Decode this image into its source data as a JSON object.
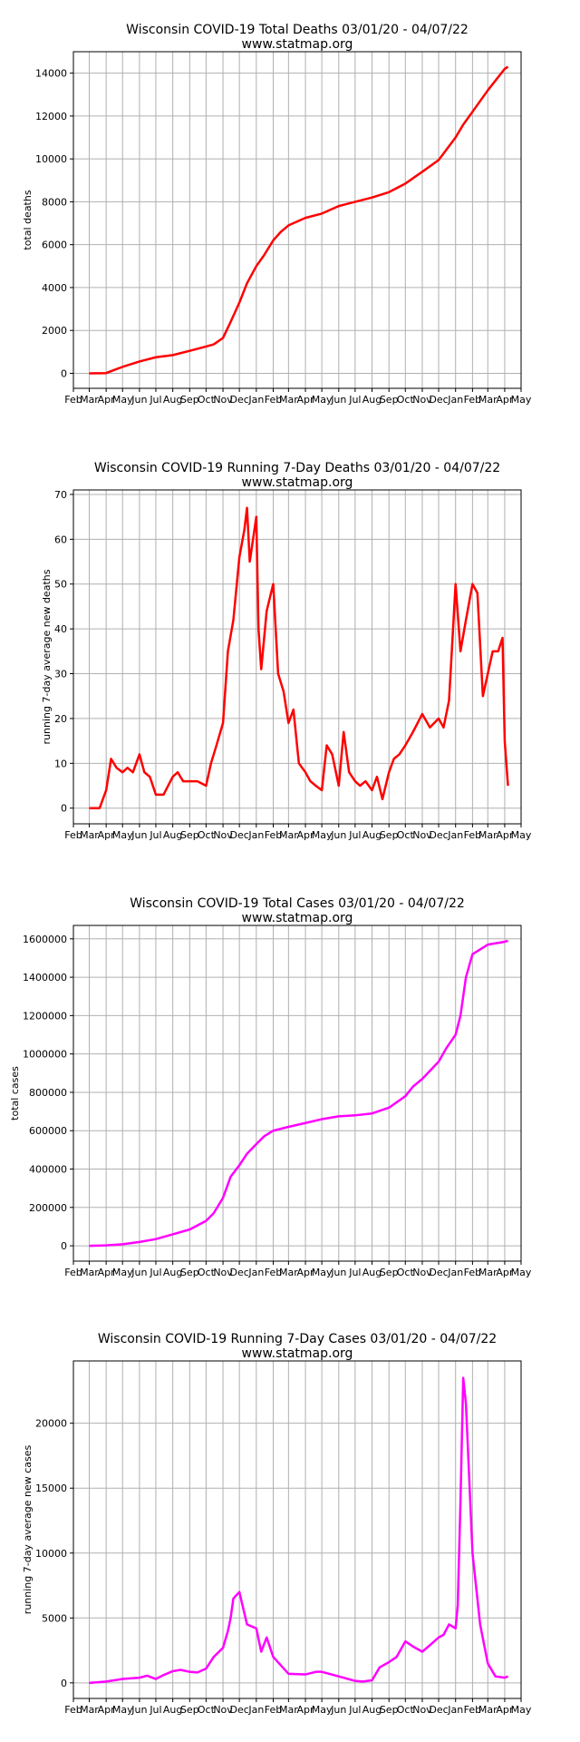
{
  "chart_data": [
    {
      "type": "line",
      "title": "Wisconsin COVID-19 Total Deaths 03/01/20 - 04/07/22",
      "subtitle": "www.statmap.org",
      "xlabel": "",
      "ylabel": "total deaths",
      "x_tick_labels": [
        "Feb",
        "Mar",
        "Apr",
        "May",
        "Jun",
        "Jul",
        "Aug",
        "Sep",
        "Oct",
        "Nov",
        "Dec",
        "Jan",
        "Feb",
        "Mar",
        "Apr",
        "May",
        "Jun",
        "Jul",
        "Aug",
        "Sep",
        "Oct",
        "Nov",
        "Dec",
        "Jan",
        "Feb",
        "Mar",
        "Apr",
        "May"
      ],
      "x_range": [
        "2020-02-01",
        "2022-05-01"
      ],
      "ylim": [
        -700,
        15000
      ],
      "y_ticks": [
        0,
        2000,
        4000,
        6000,
        8000,
        10000,
        12000,
        14000
      ],
      "y_tick_labels": [
        "0",
        "2000",
        "4000",
        "6000",
        "8000",
        "10000",
        "12000",
        "14000"
      ],
      "grid": true,
      "color": "#ff0000",
      "series": [
        {
          "x": [
            "2020-03-01",
            "2020-04-01",
            "2020-04-15",
            "2020-05-01",
            "2020-06-01",
            "2020-07-01",
            "2020-08-01",
            "2020-09-01",
            "2020-10-01",
            "2020-10-15",
            "2020-11-01",
            "2020-11-15",
            "2020-12-01",
            "2020-12-15",
            "2021-01-01",
            "2021-01-15",
            "2021-02-01",
            "2021-02-15",
            "2021-03-01",
            "2021-04-01",
            "2021-05-01",
            "2021-06-01",
            "2021-07-01",
            "2021-08-01",
            "2021-09-01",
            "2021-10-01",
            "2021-11-01",
            "2021-12-01",
            "2022-01-01",
            "2022-01-15",
            "2022-02-01",
            "2022-03-01",
            "2022-04-01",
            "2022-04-07"
          ],
          "values": [
            0,
            10,
            150,
            300,
            550,
            750,
            850,
            1050,
            1250,
            1350,
            1650,
            2400,
            3300,
            4200,
            5000,
            5500,
            6200,
            6600,
            6900,
            7250,
            7450,
            7800,
            8000,
            8200,
            8450,
            8850,
            9400,
            9950,
            11000,
            11600,
            12200,
            13200,
            14200,
            14300
          ]
        }
      ]
    },
    {
      "type": "line",
      "title": "Wisconsin COVID-19 Running 7-Day Deaths 03/01/20 - 04/07/22",
      "subtitle": "www.statmap.org",
      "xlabel": "",
      "ylabel": "running 7-day average new deaths",
      "x_tick_labels": [
        "Feb",
        "Mar",
        "Apr",
        "May",
        "Jun",
        "Jul",
        "Aug",
        "Sep",
        "Oct",
        "Nov",
        "Dec",
        "Jan",
        "Feb",
        "Mar",
        "Apr",
        "May",
        "Jun",
        "Jul",
        "Aug",
        "Sep",
        "Oct",
        "Nov",
        "Dec",
        "Jan",
        "Feb",
        "Mar",
        "Apr",
        "May"
      ],
      "x_range": [
        "2020-02-01",
        "2022-05-01"
      ],
      "ylim": [
        -3.5,
        71
      ],
      "y_ticks": [
        0,
        10,
        20,
        30,
        40,
        50,
        60,
        70
      ],
      "y_tick_labels": [
        "0",
        "10",
        "20",
        "30",
        "40",
        "50",
        "60",
        "70"
      ],
      "grid": true,
      "color": "#ff0000",
      "series": [
        {
          "x": [
            "2020-03-01",
            "2020-03-20",
            "2020-04-01",
            "2020-04-10",
            "2020-04-20",
            "2020-05-01",
            "2020-05-10",
            "2020-05-20",
            "2020-06-01",
            "2020-06-10",
            "2020-06-20",
            "2020-07-01",
            "2020-07-15",
            "2020-08-01",
            "2020-08-10",
            "2020-08-20",
            "2020-09-01",
            "2020-09-15",
            "2020-10-01",
            "2020-10-10",
            "2020-10-20",
            "2020-11-01",
            "2020-11-10",
            "2020-11-20",
            "2020-12-01",
            "2020-12-10",
            "2020-12-15",
            "2020-12-20",
            "2021-01-01",
            "2021-01-05",
            "2021-01-10",
            "2021-01-20",
            "2021-02-01",
            "2021-02-10",
            "2021-02-20",
            "2021-03-01",
            "2021-03-10",
            "2021-03-20",
            "2021-04-01",
            "2021-04-10",
            "2021-04-20",
            "2021-05-01",
            "2021-05-10",
            "2021-05-20",
            "2021-06-01",
            "2021-06-10",
            "2021-06-20",
            "2021-07-01",
            "2021-07-10",
            "2021-07-20",
            "2021-08-01",
            "2021-08-10",
            "2021-08-20",
            "2021-09-01",
            "2021-09-10",
            "2021-09-20",
            "2021-10-01",
            "2021-10-15",
            "2021-11-01",
            "2021-11-15",
            "2021-12-01",
            "2021-12-10",
            "2021-12-20",
            "2022-01-01",
            "2022-01-10",
            "2022-01-20",
            "2022-02-01",
            "2022-02-10",
            "2022-02-20",
            "2022-03-01",
            "2022-03-10",
            "2022-03-20",
            "2022-03-28",
            "2022-04-01",
            "2022-04-07"
          ],
          "values": [
            0,
            0,
            4,
            11,
            9,
            8,
            9,
            8,
            12,
            8,
            7,
            3,
            3,
            7,
            8,
            6,
            6,
            6,
            5,
            10,
            14,
            19,
            35,
            42,
            56,
            62,
            67,
            55,
            65,
            40,
            31,
            44,
            50,
            30,
            26,
            19,
            22,
            10,
            8,
            6,
            5,
            4,
            14,
            12,
            5,
            17,
            8,
            6,
            5,
            6,
            4,
            7,
            2,
            8,
            11,
            12,
            14,
            17,
            21,
            18,
            20,
            18,
            24,
            50,
            35,
            42,
            50,
            48,
            25,
            30,
            35,
            35,
            38,
            15,
            5
          ]
        }
      ]
    },
    {
      "type": "line",
      "title": "Wisconsin COVID-19 Total Cases 03/01/20 - 04/07/22",
      "subtitle": "www.statmap.org",
      "xlabel": "",
      "ylabel": "total cases",
      "x_tick_labels": [
        "Feb",
        "Mar",
        "Apr",
        "May",
        "Jun",
        "Jul",
        "Aug",
        "Sep",
        "Oct",
        "Nov",
        "Dec",
        "Jan",
        "Feb",
        "Mar",
        "Apr",
        "May",
        "Jun",
        "Jul",
        "Aug",
        "Sep",
        "Oct",
        "Nov",
        "Dec",
        "Jan",
        "Feb",
        "Mar",
        "Apr",
        "May"
      ],
      "x_range": [
        "2020-02-01",
        "2022-05-01"
      ],
      "ylim": [
        -80000,
        1670000
      ],
      "y_ticks": [
        0,
        200000,
        400000,
        600000,
        800000,
        1000000,
        1200000,
        1400000,
        1600000
      ],
      "y_tick_labels": [
        "0",
        "200000",
        "400000",
        "600000",
        "800000",
        "1000000",
        "1200000",
        "1400000",
        "1600000"
      ],
      "grid": true,
      "color": "#ff00ff",
      "series": [
        {
          "x": [
            "2020-03-01",
            "2020-04-01",
            "2020-05-01",
            "2020-06-01",
            "2020-07-01",
            "2020-08-01",
            "2020-09-01",
            "2020-10-01",
            "2020-10-15",
            "2020-11-01",
            "2020-11-15",
            "2020-12-01",
            "2020-12-15",
            "2021-01-01",
            "2021-01-15",
            "2021-02-01",
            "2021-03-01",
            "2021-04-01",
            "2021-05-01",
            "2021-06-01",
            "2021-07-01",
            "2021-08-01",
            "2021-09-01",
            "2021-10-01",
            "2021-10-15",
            "2021-11-01",
            "2021-12-01",
            "2021-12-15",
            "2022-01-01",
            "2022-01-10",
            "2022-01-20",
            "2022-02-01",
            "2022-03-01",
            "2022-04-01",
            "2022-04-07"
          ],
          "values": [
            0,
            2000,
            8000,
            20000,
            35000,
            60000,
            85000,
            130000,
            170000,
            250000,
            360000,
            420000,
            480000,
            530000,
            570000,
            600000,
            620000,
            640000,
            660000,
            675000,
            680000,
            690000,
            720000,
            780000,
            830000,
            870000,
            960000,
            1030000,
            1100000,
            1200000,
            1400000,
            1520000,
            1570000,
            1585000,
            1590000
          ]
        }
      ]
    },
    {
      "type": "line",
      "title": "Wisconsin COVID-19 Running 7-Day Cases 03/01/20 - 04/07/22",
      "subtitle": "www.statmap.org",
      "xlabel": "",
      "ylabel": "running 7-day average new cases",
      "x_tick_labels": [
        "Feb",
        "Mar",
        "Apr",
        "May",
        "Jun",
        "Jul",
        "Aug",
        "Sep",
        "Oct",
        "Nov",
        "Dec",
        "Jan",
        "Feb",
        "Mar",
        "Apr",
        "May",
        "Jun",
        "Jul",
        "Aug",
        "Sep",
        "Oct",
        "Nov",
        "Dec",
        "Jan",
        "Feb",
        "Mar",
        "Apr",
        "May"
      ],
      "x_range": [
        "2020-02-01",
        "2022-05-01"
      ],
      "ylim": [
        -1200,
        24800
      ],
      "y_ticks": [
        0,
        5000,
        10000,
        15000,
        20000
      ],
      "y_tick_labels": [
        "0",
        "5000",
        "10000",
        "15000",
        "20000"
      ],
      "grid": true,
      "color": "#ff00ff",
      "series": [
        {
          "x": [
            "2020-03-01",
            "2020-04-01",
            "2020-05-01",
            "2020-06-01",
            "2020-06-15",
            "2020-07-01",
            "2020-07-15",
            "2020-08-01",
            "2020-08-15",
            "2020-09-01",
            "2020-09-15",
            "2020-10-01",
            "2020-10-15",
            "2020-11-01",
            "2020-11-10",
            "2020-11-15",
            "2020-11-20",
            "2020-12-01",
            "2020-12-15",
            "2021-01-01",
            "2021-01-10",
            "2021-01-20",
            "2021-02-01",
            "2021-03-01",
            "2021-04-01",
            "2021-04-20",
            "2021-05-01",
            "2021-06-01",
            "2021-07-01",
            "2021-07-15",
            "2021-08-01",
            "2021-08-15",
            "2021-09-01",
            "2021-09-15",
            "2021-10-01",
            "2021-10-15",
            "2021-11-01",
            "2021-11-15",
            "2021-12-01",
            "2021-12-10",
            "2021-12-20",
            "2022-01-01",
            "2022-01-05",
            "2022-01-10",
            "2022-01-15",
            "2022-01-20",
            "2022-02-01",
            "2022-02-15",
            "2022-03-01",
            "2022-03-15",
            "2022-04-01",
            "2022-04-07"
          ],
          "values": [
            0,
            100,
            300,
            400,
            550,
            300,
            600,
            900,
            1000,
            850,
            800,
            1100,
            2000,
            2700,
            4000,
            5000,
            6500,
            7000,
            4500,
            4200,
            2400,
            3500,
            2000,
            700,
            650,
            850,
            850,
            500,
            150,
            100,
            200,
            1200,
            1600,
            2000,
            3200,
            2800,
            2400,
            2900,
            3500,
            3700,
            4500,
            4200,
            6000,
            14000,
            23500,
            21500,
            10000,
            4500,
            1500,
            500,
            400,
            500
          ]
        }
      ]
    }
  ]
}
